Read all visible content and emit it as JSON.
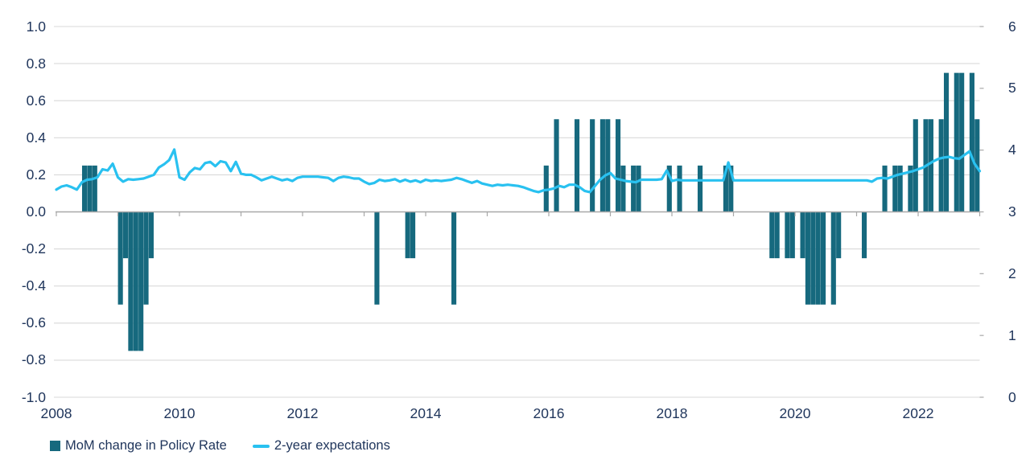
{
  "legend": {
    "bar_label": "MoM change in Policy Rate",
    "line_label": "2-year expectations"
  },
  "colors": {
    "bar": "#16697e",
    "line": "#29c1f0",
    "axis_text": "#20365c",
    "gridline": "#d9d9d9",
    "axis_line": "#a8a8a8"
  },
  "chart_data": {
    "type": "bar",
    "subtype": "combo-bar-line",
    "title": "",
    "x_axis": {
      "start_month": "2008-01",
      "end_month": "2023-01",
      "year_tick_labels": [
        "2008",
        "2010",
        "2012",
        "2014",
        "2016",
        "2018",
        "2020",
        "2022"
      ]
    },
    "left_axis": {
      "min": -1.0,
      "max": 1.0,
      "tick_labels": [
        "1.0",
        "0.8",
        "0.6",
        "0.4",
        "0.2",
        "0.0",
        "-0.2",
        "-0.4",
        "-0.6",
        "-0.8",
        "-1.0"
      ]
    },
    "right_axis": {
      "min": 0,
      "max": 6,
      "tick_labels": [
        "6",
        "5",
        "4",
        "3",
        "2",
        "1",
        "0"
      ]
    },
    "bar_series": {
      "name": "MoM change in Policy Rate",
      "axis": "left",
      "points": [
        {
          "date": "2008-06",
          "value": 0.25
        },
        {
          "date": "2008-07",
          "value": 0.25
        },
        {
          "date": "2008-08",
          "value": 0.25
        },
        {
          "date": "2009-01",
          "value": -0.5
        },
        {
          "date": "2009-02",
          "value": -0.25
        },
        {
          "date": "2009-03",
          "value": -0.75
        },
        {
          "date": "2009-04",
          "value": -0.75
        },
        {
          "date": "2009-05",
          "value": -0.75
        },
        {
          "date": "2009-06",
          "value": -0.5
        },
        {
          "date": "2009-07",
          "value": -0.25
        },
        {
          "date": "2013-03",
          "value": -0.5
        },
        {
          "date": "2013-09",
          "value": -0.25
        },
        {
          "date": "2013-10",
          "value": -0.25
        },
        {
          "date": "2014-06",
          "value": -0.5
        },
        {
          "date": "2015-12",
          "value": 0.25
        },
        {
          "date": "2016-02",
          "value": 0.5
        },
        {
          "date": "2016-06",
          "value": 0.5
        },
        {
          "date": "2016-09",
          "value": 0.5
        },
        {
          "date": "2016-11",
          "value": 0.5
        },
        {
          "date": "2016-12",
          "value": 0.5
        },
        {
          "date": "2017-02",
          "value": 0.5
        },
        {
          "date": "2017-03",
          "value": 0.25
        },
        {
          "date": "2017-05",
          "value": 0.25
        },
        {
          "date": "2017-06",
          "value": 0.25
        },
        {
          "date": "2017-12",
          "value": 0.25
        },
        {
          "date": "2018-02",
          "value": 0.25
        },
        {
          "date": "2018-06",
          "value": 0.25
        },
        {
          "date": "2018-11",
          "value": 0.25
        },
        {
          "date": "2018-12",
          "value": 0.25
        },
        {
          "date": "2019-08",
          "value": -0.25
        },
        {
          "date": "2019-09",
          "value": -0.25
        },
        {
          "date": "2019-11",
          "value": -0.25
        },
        {
          "date": "2019-12",
          "value": -0.25
        },
        {
          "date": "2020-02",
          "value": -0.25
        },
        {
          "date": "2020-03",
          "value": -0.5
        },
        {
          "date": "2020-04",
          "value": -0.5
        },
        {
          "date": "2020-05",
          "value": -0.5
        },
        {
          "date": "2020-06",
          "value": -0.5
        },
        {
          "date": "2020-08",
          "value": -0.5
        },
        {
          "date": "2020-09",
          "value": -0.25
        },
        {
          "date": "2021-02",
          "value": -0.25
        },
        {
          "date": "2021-06",
          "value": 0.25
        },
        {
          "date": "2021-08",
          "value": 0.25
        },
        {
          "date": "2021-09",
          "value": 0.25
        },
        {
          "date": "2021-11",
          "value": 0.25
        },
        {
          "date": "2021-12",
          "value": 0.5
        },
        {
          "date": "2022-02",
          "value": 0.5
        },
        {
          "date": "2022-03",
          "value": 0.5
        },
        {
          "date": "2022-05",
          "value": 0.5
        },
        {
          "date": "2022-06",
          "value": 0.75
        },
        {
          "date": "2022-08",
          "value": 0.75
        },
        {
          "date": "2022-09",
          "value": 0.75
        },
        {
          "date": "2022-11",
          "value": 0.75
        },
        {
          "date": "2022-12",
          "value": 0.5
        }
      ]
    },
    "line_series": {
      "name": "2-year expectations",
      "axis": "right",
      "start": "2008-01",
      "monthly_values": [
        3.36,
        3.41,
        3.43,
        3.4,
        3.36,
        3.48,
        3.52,
        3.53,
        3.56,
        3.69,
        3.67,
        3.78,
        3.56,
        3.49,
        3.53,
        3.52,
        3.53,
        3.54,
        3.57,
        3.6,
        3.72,
        3.77,
        3.84,
        4.01,
        3.56,
        3.52,
        3.64,
        3.71,
        3.69,
        3.79,
        3.81,
        3.74,
        3.82,
        3.8,
        3.66,
        3.81,
        3.62,
        3.6,
        3.6,
        3.56,
        3.51,
        3.54,
        3.57,
        3.54,
        3.51,
        3.53,
        3.5,
        3.55,
        3.57,
        3.57,
        3.57,
        3.57,
        3.56,
        3.55,
        3.5,
        3.55,
        3.57,
        3.56,
        3.54,
        3.54,
        3.49,
        3.45,
        3.47,
        3.52,
        3.5,
        3.51,
        3.53,
        3.49,
        3.52,
        3.49,
        3.51,
        3.48,
        3.52,
        3.5,
        3.51,
        3.5,
        3.51,
        3.52,
        3.55,
        3.53,
        3.5,
        3.47,
        3.5,
        3.46,
        3.44,
        3.42,
        3.44,
        3.43,
        3.44,
        3.43,
        3.42,
        3.4,
        3.37,
        3.34,
        3.32,
        3.35,
        3.36,
        3.38,
        3.42,
        3.4,
        3.44,
        3.44,
        3.4,
        3.34,
        3.32,
        3.42,
        3.52,
        3.59,
        3.63,
        3.54,
        3.52,
        3.5,
        3.49,
        3.48,
        3.52,
        3.52,
        3.52,
        3.52,
        3.53,
        3.67,
        3.5,
        3.52,
        3.51,
        3.51,
        3.51,
        3.51,
        3.51,
        3.51,
        3.51,
        3.51,
        3.51,
        3.8,
        3.51,
        3.51,
        3.51,
        3.51,
        3.51,
        3.51,
        3.51,
        3.51,
        3.51,
        3.51,
        3.51,
        3.51,
        3.51,
        3.51,
        3.51,
        3.51,
        3.51,
        3.51,
        3.51,
        3.51,
        3.51,
        3.51,
        3.51,
        3.51,
        3.51,
        3.51,
        3.51,
        3.49,
        3.54,
        3.55,
        3.54,
        3.57,
        3.6,
        3.62,
        3.64,
        3.66,
        3.69,
        3.72,
        3.77,
        3.82,
        3.86,
        3.88,
        3.89,
        3.87,
        3.86,
        3.92,
        3.98,
        3.78,
        3.66
      ]
    }
  }
}
